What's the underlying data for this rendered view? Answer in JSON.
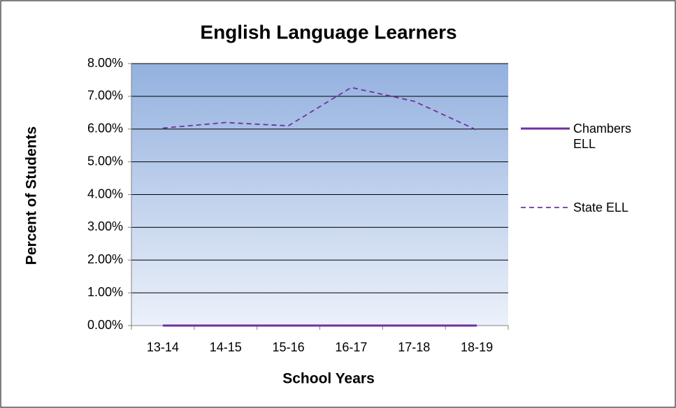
{
  "chart_data": {
    "type": "line",
    "title": "English Language Learners",
    "x_label": "School Years",
    "y_label": "Percent of Students",
    "categories": [
      "13-14",
      "14-15",
      "15-16",
      "16-17",
      "17-18",
      "18-19"
    ],
    "series": [
      {
        "name": "Chambers ELL",
        "color": "#7030a0",
        "dash": "solid",
        "values": [
          0,
          0,
          0,
          0,
          0,
          0
        ]
      },
      {
        "name": "State ELL",
        "color": "#7030a0",
        "dash": "dashed",
        "values": [
          6.03,
          6.2,
          6.1,
          7.27,
          6.85,
          5.97
        ]
      }
    ],
    "ylim": [
      0,
      8
    ],
    "yticks": [
      {
        "value": 0,
        "label": "0.00%"
      },
      {
        "value": 1,
        "label": "1.00%"
      },
      {
        "value": 2,
        "label": "2.00%"
      },
      {
        "value": 3,
        "label": "3.00%"
      },
      {
        "value": 4,
        "label": "4.00%"
      },
      {
        "value": 5,
        "label": "5.00%"
      },
      {
        "value": 6,
        "label": "6.00%"
      },
      {
        "value": 7,
        "label": "7.00%"
      },
      {
        "value": 8,
        "label": "8.00%"
      }
    ],
    "grid": true,
    "legend": "right"
  }
}
